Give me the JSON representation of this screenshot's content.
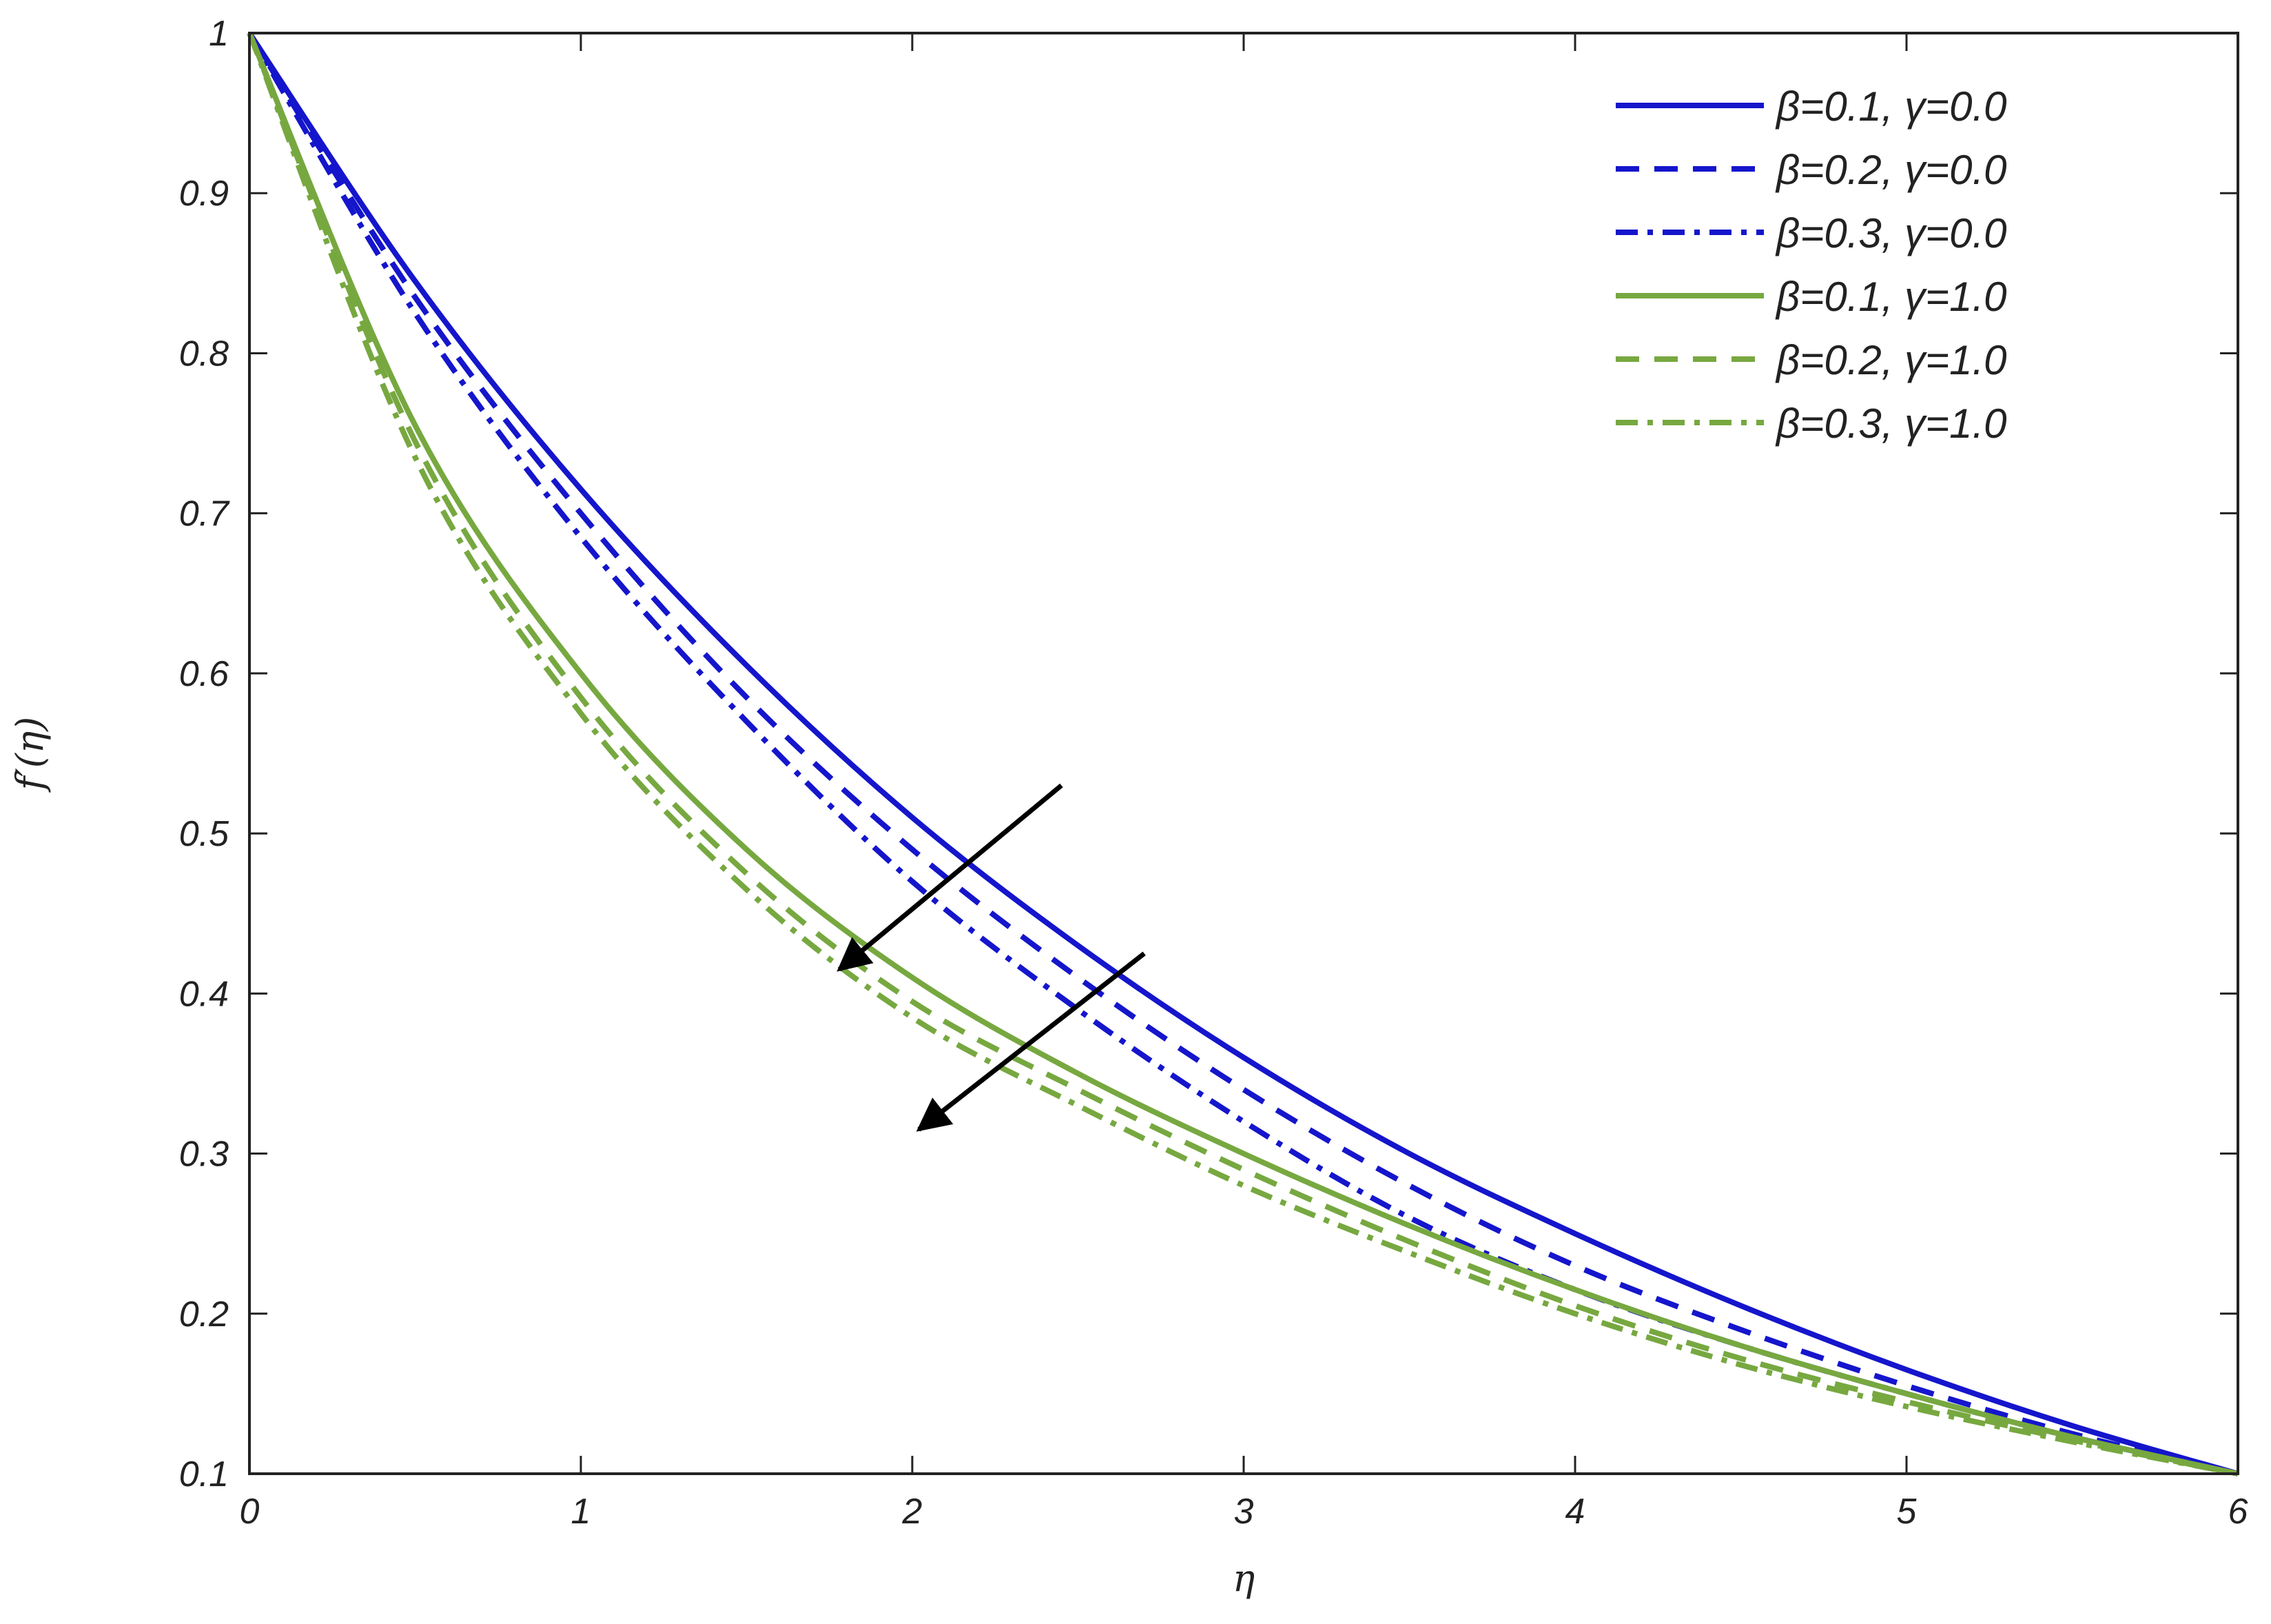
{
  "chart_data": {
    "type": "line",
    "xlabel": "η",
    "ylabel": "f′(η)",
    "xlim": [
      0,
      6
    ],
    "ylim": [
      0.1,
      1
    ],
    "xticks": [
      0,
      1,
      2,
      3,
      4,
      5,
      6
    ],
    "xtick_labels": [
      "0",
      "1",
      "2",
      "3",
      "4",
      "5",
      "6"
    ],
    "yticks": [
      0.1,
      0.2,
      0.3,
      0.4,
      0.5,
      0.6,
      0.7,
      0.8,
      0.9,
      1
    ],
    "ytick_labels": [
      "0.1",
      "0.2",
      "0.3",
      "0.4",
      "0.5",
      "0.6",
      "0.7",
      "0.8",
      "0.9",
      "1"
    ],
    "grid": false,
    "legend_position": "top-right",
    "x": [
      0,
      0.5,
      1,
      1.5,
      2,
      2.5,
      3,
      3.5,
      4,
      4.5,
      5,
      5.5,
      6
    ],
    "series": [
      {
        "name": "β=0.1, γ=0.0",
        "color": "#1515cc",
        "style": "solid",
        "values": [
          1.0,
          0.845,
          0.715,
          0.605,
          0.51,
          0.43,
          0.36,
          0.3,
          0.25,
          0.205,
          0.165,
          0.13,
          0.1
        ]
      },
      {
        "name": "β=0.2, γ=0.0",
        "color": "#1515cc",
        "style": "dashed",
        "values": [
          1.0,
          0.835,
          0.7,
          0.585,
          0.49,
          0.41,
          0.34,
          0.28,
          0.23,
          0.19,
          0.155,
          0.125,
          0.1
        ]
      },
      {
        "name": "β=0.3, γ=0.0",
        "color": "#1515cc",
        "style": "dashdot",
        "values": [
          1.0,
          0.825,
          0.685,
          0.57,
          0.47,
          0.39,
          0.32,
          0.26,
          0.215,
          0.18,
          0.15,
          0.123,
          0.1
        ]
      },
      {
        "name": "β=0.1, γ=1.0",
        "color": "#77a840",
        "style": "solid",
        "values": [
          1.0,
          0.755,
          0.6,
          0.49,
          0.41,
          0.35,
          0.3,
          0.255,
          0.215,
          0.18,
          0.15,
          0.123,
          0.1
        ]
      },
      {
        "name": "β=0.2, γ=1.0",
        "color": "#77a840",
        "style": "dashed",
        "values": [
          1.0,
          0.745,
          0.585,
          0.475,
          0.395,
          0.34,
          0.29,
          0.245,
          0.205,
          0.172,
          0.145,
          0.121,
          0.1
        ]
      },
      {
        "name": "β=0.3, γ=1.0",
        "color": "#77a840",
        "style": "dashdot",
        "values": [
          1.0,
          0.735,
          0.575,
          0.465,
          0.385,
          0.33,
          0.28,
          0.238,
          0.2,
          0.168,
          0.142,
          0.12,
          0.1
        ]
      }
    ],
    "annotations": [
      {
        "type": "arrow",
        "from": [
          2.45,
          0.53
        ],
        "to": [
          1.78,
          0.415
        ]
      },
      {
        "type": "arrow",
        "from": [
          2.7,
          0.425
        ],
        "to": [
          2.02,
          0.315
        ]
      }
    ]
  }
}
